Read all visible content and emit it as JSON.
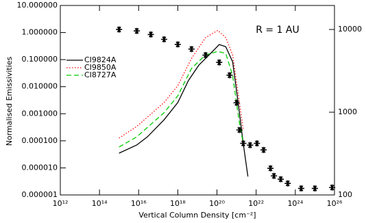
{
  "chart_data": {
    "type": "line",
    "annotation": "R = 1 AU",
    "xlabel": "Vertical Column Density [cm⁻²]",
    "ylabel": "Normalised Emissivities",
    "xscale": "log",
    "yscale": "log",
    "y2scale": "log",
    "xlim": [
      1000000000000.0,
      1e+26
    ],
    "ylim": [
      1e-06,
      10
    ],
    "y2lim": [
      100,
      19500
    ],
    "xticks": [
      {
        "value": 1000000000000.0,
        "label": "10¹²"
      },
      {
        "value": 100000000000000.0,
        "label": "10¹⁴"
      },
      {
        "value": 1e+16,
        "label": "10¹⁶"
      },
      {
        "value": 1e+18,
        "label": "10¹⁸"
      },
      {
        "value": 1e+20,
        "label": "10²⁰"
      },
      {
        "value": 1e+22,
        "label": "10²²"
      },
      {
        "value": 1e+24,
        "label": "10²⁴"
      },
      {
        "value": 1e+26,
        "label": "10²⁶"
      }
    ],
    "yticks": [
      {
        "value": 1e-06,
        "label": "0.000001"
      },
      {
        "value": 1e-05,
        "label": "0.000010"
      },
      {
        "value": 0.0001,
        "label": "0.000100"
      },
      {
        "value": 0.001,
        "label": "0.001000"
      },
      {
        "value": 0.01,
        "label": "0.010000"
      },
      {
        "value": 0.1,
        "label": "0.100000"
      },
      {
        "value": 1,
        "label": "1.000000"
      },
      {
        "value": 10,
        "label": "10.000000"
      }
    ],
    "y2ticks": [
      100,
      1000,
      10000
    ],
    "legend": "upper left",
    "series": [
      {
        "name": "CI9824A",
        "color": "#000000",
        "style": "solid",
        "x": [
          1000000000000000.0,
          8000000000000000.0,
          2.8e+16,
          2e+17,
          1e+18,
          3.5e+18,
          1.2e+19,
          4e+19,
          1.3e+20,
          2.8e+20,
          6.3e+20,
          1.2e+21,
          2.2e+21,
          3.8e+21
        ],
        "values": [
          3.5e-05,
          7e-05,
          0.00014,
          0.0006,
          0.0026,
          0.017,
          0.063,
          0.15,
          0.36,
          0.3,
          0.083,
          0.0026,
          7.9e-05,
          4.8e-06
        ]
      },
      {
        "name": "CI9850A",
        "color": "#ff0000",
        "style": "dotted",
        "x": [
          1000000000000000.0,
          8000000000000000.0,
          2e+17,
          1e+18,
          5e+18,
          2.6e+19,
          1.1e+20,
          2.8e+20,
          6.3e+20,
          1.4e+21,
          2.2e+21
        ],
        "values": [
          0.000126,
          0.00034,
          0.0026,
          0.011,
          0.11,
          0.65,
          1.2,
          0.65,
          0.15,
          0.0026,
          0.00025
        ]
      },
      {
        "name": "CI8727A",
        "color": "#00cc00",
        "style": "dashed",
        "x": [
          1000000000000000.0,
          8000000000000000.0,
          2e+17,
          1e+18,
          5e+18,
          2.6e+19,
          1.1e+20,
          2.8e+20,
          6.3e+20,
          1.4e+21,
          2.2e+21
        ],
        "values": [
          5.9e-05,
          0.00014,
          0.0011,
          0.0046,
          0.047,
          0.15,
          0.2,
          0.17,
          0.026,
          0.00045,
          7.9e-05
        ]
      },
      {
        "color": "#000000",
        "style": "markers",
        "axis": "y2",
        "x": [
          1000000000000000.0,
          8000000000000000.0,
          4.2e+16,
          2e+17,
          1e+18,
          5e+18,
          2.6e+19,
          1.3e+20,
          4.4e+20,
          1e+21,
          1.4e+21,
          2.2e+21,
          4.9e+21,
          1.1e+22,
          2.4e+22,
          5.4e+22,
          8.1e+22,
          1.8e+23,
          4.1e+23,
          2e+24,
          1e+25,
          7.6e+25
        ],
        "values": [
          10000,
          9600,
          8700,
          7600,
          6600,
          5800,
          4900,
          4000,
          2800,
          1300,
          610,
          420,
          400,
          420,
          350,
          210,
          170,
          155,
          138,
          120,
          120,
          123
        ]
      }
    ]
  }
}
